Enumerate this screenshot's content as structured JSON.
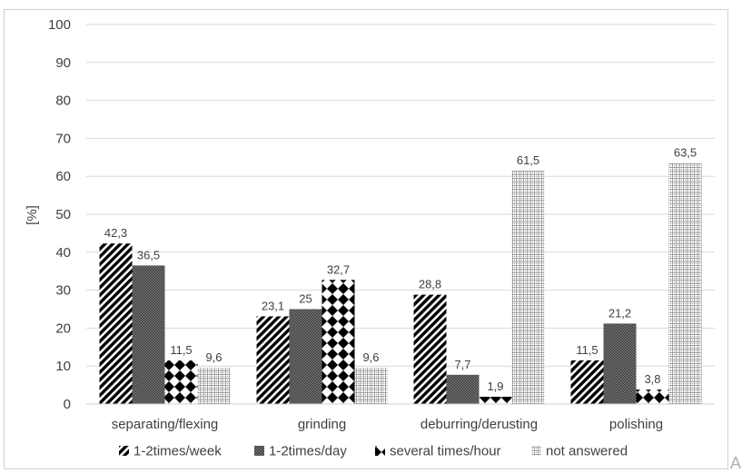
{
  "chart_data": {
    "type": "bar",
    "ylabel": "[%]",
    "ylim": [
      0,
      100
    ],
    "yticks": [
      "0",
      "10",
      "20",
      "30",
      "40",
      "50",
      "60",
      "70",
      "80",
      "90",
      "100"
    ],
    "grid": true,
    "legend_position": "bottom",
    "categories": [
      "separating/flexing",
      "grinding",
      "deburring/derusting",
      "polishing"
    ],
    "series": [
      {
        "name": "1-2times/week",
        "values": [
          42.3,
          23.1,
          28.8,
          11.5
        ],
        "labels": [
          "42,3",
          "23,1",
          "28,8",
          "11,5"
        ]
      },
      {
        "name": "1-2times/day",
        "values": [
          36.5,
          25,
          7.7,
          21.2
        ],
        "labels": [
          "36,5",
          "25",
          "7,7",
          "21,2"
        ]
      },
      {
        "name": "several times/hour",
        "values": [
          11.5,
          32.7,
          1.9,
          3.8
        ],
        "labels": [
          "11,5",
          "32,7",
          "1,9",
          "3,8"
        ]
      },
      {
        "name": "not answered",
        "values": [
          9.6,
          9.6,
          61.5,
          63.5
        ],
        "labels": [
          "9,6",
          "9,6",
          "61,5",
          "63,5"
        ]
      }
    ]
  },
  "corner_mark": "A"
}
